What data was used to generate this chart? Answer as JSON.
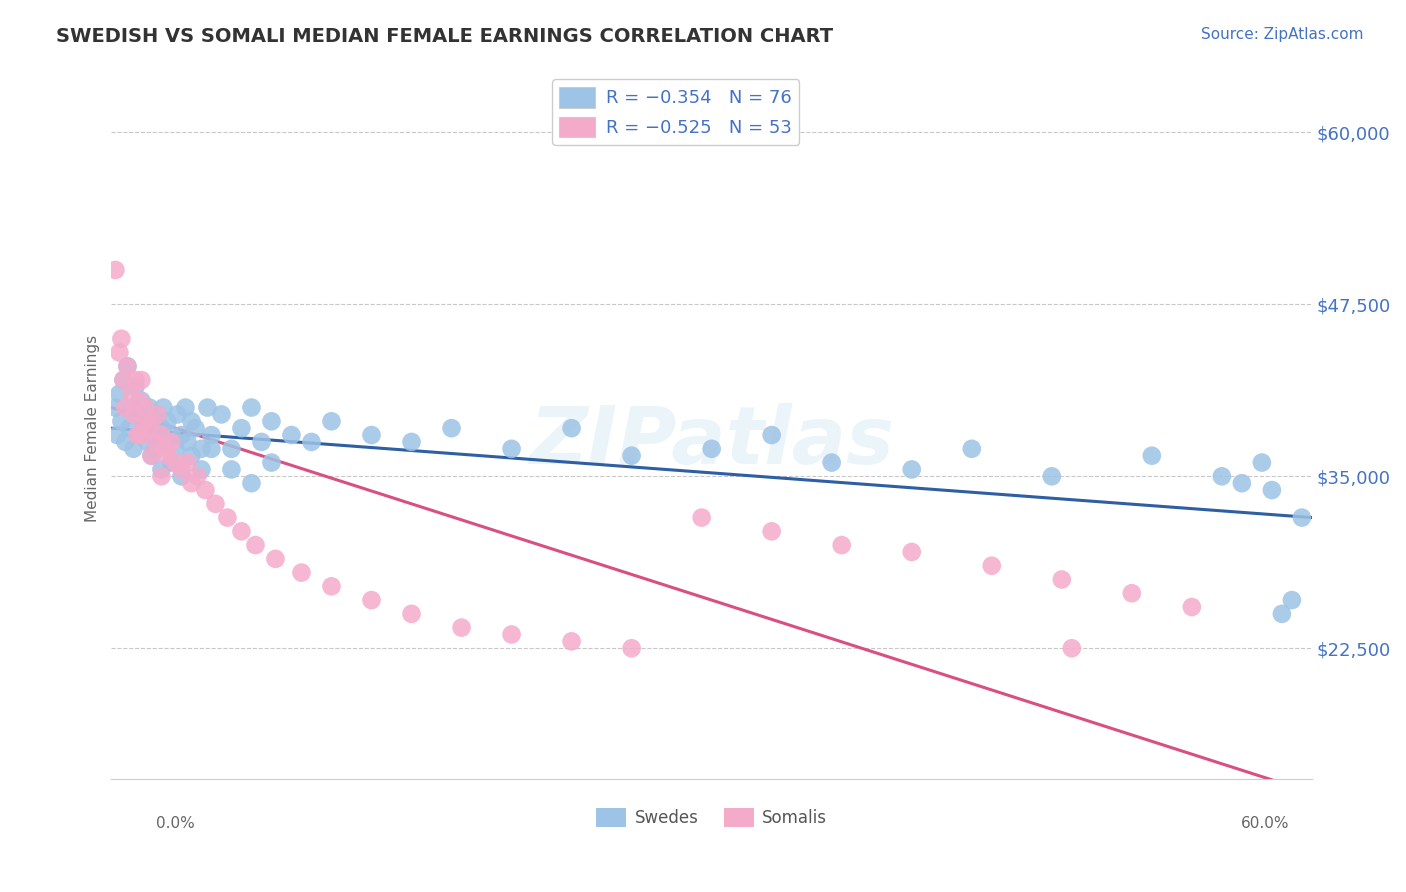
{
  "title": "SWEDISH VS SOMALI MEDIAN FEMALE EARNINGS CORRELATION CHART",
  "source": "Source: ZipAtlas.com",
  "ylabel": "Median Female Earnings",
  "yticks": [
    22500,
    35000,
    47500,
    60000
  ],
  "ytick_labels": [
    "$22,500",
    "$35,000",
    "$47,500",
    "$60,000"
  ],
  "xlim": [
    0.0,
    0.6
  ],
  "ylim": [
    13000,
    64000
  ],
  "legend_swedes": "R = -0.354   N = 76",
  "legend_somalis": "R = -0.525   N = 53",
  "legend_label1": "Swedes",
  "legend_label2": "Somalis",
  "blue_color": "#4472C4",
  "pink_color": "#E85D8A",
  "blue_scatter": "#9DC3E6",
  "pink_scatter": "#F4ABCA",
  "trend_blue": "#2E5FA3",
  "trend_pink": "#D94F82",
  "watermark": "ZIPatlas",
  "swedes_x": [
    0.002,
    0.003,
    0.004,
    0.005,
    0.006,
    0.007,
    0.008,
    0.009,
    0.01,
    0.011,
    0.012,
    0.013,
    0.014,
    0.015,
    0.016,
    0.017,
    0.018,
    0.019,
    0.02,
    0.021,
    0.022,
    0.023,
    0.025,
    0.026,
    0.027,
    0.028,
    0.03,
    0.032,
    0.033,
    0.035,
    0.037,
    0.038,
    0.04,
    0.042,
    0.045,
    0.048,
    0.05,
    0.055,
    0.06,
    0.065,
    0.07,
    0.075,
    0.08,
    0.09,
    0.1,
    0.11,
    0.13,
    0.15,
    0.17,
    0.2,
    0.23,
    0.26,
    0.3,
    0.33,
    0.36,
    0.4,
    0.43,
    0.47,
    0.52,
    0.555,
    0.565,
    0.575,
    0.58,
    0.585,
    0.59,
    0.595,
    0.02,
    0.025,
    0.03,
    0.035,
    0.04,
    0.045,
    0.05,
    0.06,
    0.07,
    0.08
  ],
  "swedes_y": [
    40000,
    38000,
    41000,
    39000,
    42000,
    37500,
    43000,
    38500,
    40000,
    37000,
    41500,
    39500,
    38000,
    40500,
    39000,
    38500,
    37500,
    40000,
    39000,
    38000,
    37000,
    39500,
    38500,
    40000,
    37500,
    39000,
    38000,
    37000,
    39500,
    38000,
    40000,
    37500,
    39000,
    38500,
    37000,
    40000,
    38000,
    39500,
    37000,
    38500,
    40000,
    37500,
    39000,
    38000,
    37500,
    39000,
    38000,
    37500,
    38500,
    37000,
    38500,
    36500,
    37000,
    38000,
    36000,
    35500,
    37000,
    35000,
    36500,
    35000,
    34500,
    36000,
    34000,
    25000,
    26000,
    32000,
    36500,
    35500,
    36000,
    35000,
    36500,
    35500,
    37000,
    35500,
    34500,
    36000
  ],
  "somalis_x": [
    0.002,
    0.004,
    0.005,
    0.006,
    0.007,
    0.008,
    0.01,
    0.011,
    0.012,
    0.013,
    0.014,
    0.015,
    0.016,
    0.017,
    0.018,
    0.02,
    0.022,
    0.023,
    0.025,
    0.027,
    0.028,
    0.03,
    0.032,
    0.035,
    0.038,
    0.04,
    0.043,
    0.047,
    0.052,
    0.058,
    0.065,
    0.072,
    0.082,
    0.095,
    0.11,
    0.13,
    0.15,
    0.175,
    0.2,
    0.23,
    0.26,
    0.295,
    0.33,
    0.365,
    0.4,
    0.44,
    0.475,
    0.51,
    0.54,
    0.015,
    0.02,
    0.025,
    0.48
  ],
  "somalis_y": [
    50000,
    44000,
    45000,
    42000,
    40000,
    43000,
    41000,
    39500,
    42000,
    38000,
    40500,
    42000,
    39000,
    40000,
    38500,
    39000,
    37500,
    39500,
    38000,
    37000,
    36500,
    37500,
    36000,
    35500,
    36000,
    34500,
    35000,
    34000,
    33000,
    32000,
    31000,
    30000,
    29000,
    28000,
    27000,
    26000,
    25000,
    24000,
    23500,
    23000,
    22500,
    32000,
    31000,
    30000,
    29500,
    28500,
    27500,
    26500,
    25500,
    38000,
    36500,
    35000,
    22500
  ]
}
